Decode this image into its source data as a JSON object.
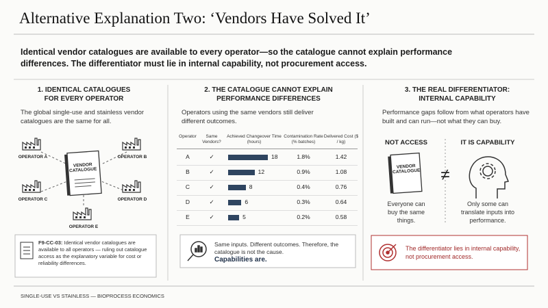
{
  "header": {
    "title": "Alternative Explanation Two: ‘Vendors Have Solved It’",
    "lead": "Identical vendor catalogues are available to every operator—so the catalogue cannot explain performance differences. The differentiator must lie in internal capability, not procurement access."
  },
  "panels": [
    {
      "heading": [
        "1. IDENTICAL CATALOGUES",
        "FOR EVERY OPERATOR"
      ],
      "text": "The global single-use and stainless vendor catalogues are the same for all.",
      "catalogue": "VENDOR CATALOGUE",
      "operators": [
        "OPERATOR A",
        "OPERATOR B",
        "OPERATOR C",
        "OPERATOR D",
        "OPERATOR E"
      ],
      "note_id": "F9-CC-03:",
      "note": "Identical vendor catalogues are available to all operators — ruling out catalogue access as the explanatory variable for cost or reliability differences."
    },
    {
      "heading": [
        "2. THE CATALOGUE CANNOT EXPLAIN",
        "PERFORMANCE DIFFERENCES"
      ],
      "text": "Operators using the same vendors still deliver different outcomes.",
      "table": {
        "columns": [
          "Operator",
          "Same Vendors?",
          "Achieved Changeover Time (hours)",
          "Contamination Rate (% batches)",
          "Delivered Cost ($ / kg)"
        ],
        "rows": [
          [
            "A",
            "✓",
            18,
            "1.8%",
            1.42
          ],
          [
            "B",
            "✓",
            12,
            "0.9%",
            1.08
          ],
          [
            "C",
            "✓",
            8,
            "0.4%",
            0.76
          ],
          [
            "D",
            "✓",
            6,
            "0.3%",
            0.64
          ],
          [
            "E",
            "✓",
            5,
            "0.2%",
            0.58
          ]
        ]
      },
      "note": "Same inputs. Different outcomes. Therefore, the catalogue is not the cause.",
      "note_emphasis": "Capabilities are."
    },
    {
      "heading": [
        "3. THE REAL DIFFERENTIATOR:",
        "INTERNAL CAPABILITY"
      ],
      "text": "Performance gaps follow from what operators have built and can run—not what they can buy.",
      "left_label": "NOT ACCESS",
      "right_label": "IT IS CAPABILITY",
      "catalogue": "VENDOR CATALOGUE",
      "relation": "≠",
      "left_caption": "Everyone can buy the same things.",
      "right_caption": "Only some can translate inputs into performance.",
      "callout": "The differentiator lies in internal capability, not procurement access."
    }
  ],
  "footer": "SINGLE-USE VS STAINLESS — BIOPROCESS ECONOMICS"
}
